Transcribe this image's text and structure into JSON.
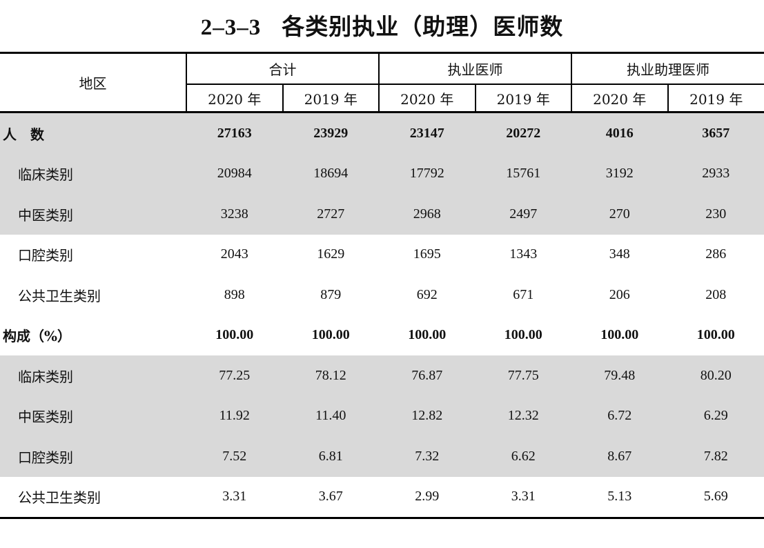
{
  "title": {
    "number": "2–3–3",
    "text": "各类别执业（助理）医师数"
  },
  "header": {
    "region": "地区",
    "groups": [
      "合计",
      "执业医师",
      "执业助理医师"
    ],
    "years": [
      "2020 年",
      "2019 年",
      "2020 年",
      "2019 年",
      "2020 年",
      "2019 年"
    ]
  },
  "rows": [
    {
      "label": "人　数",
      "type": "main",
      "values": [
        "27163",
        "23929",
        "23147",
        "20272",
        "4016",
        "3657"
      ]
    },
    {
      "label": "临床类别",
      "type": "sub",
      "values": [
        "20984",
        "18694",
        "17792",
        "15761",
        "3192",
        "2933"
      ]
    },
    {
      "label": "中医类别",
      "type": "sub",
      "values": [
        "3238",
        "2727",
        "2968",
        "2497",
        "270",
        "230"
      ]
    },
    {
      "label": "口腔类别",
      "type": "sub",
      "values": [
        "2043",
        "1629",
        "1695",
        "1343",
        "348",
        "286"
      ]
    },
    {
      "label": "公共卫生类别",
      "type": "sub",
      "values": [
        "898",
        "879",
        "692",
        "671",
        "206",
        "208"
      ]
    },
    {
      "label": "构成（%）",
      "type": "main",
      "values": [
        "100.00",
        "100.00",
        "100.00",
        "100.00",
        "100.00",
        "100.00"
      ]
    },
    {
      "label": "临床类别",
      "type": "sub",
      "values": [
        "77.25",
        "78.12",
        "76.87",
        "77.75",
        "79.48",
        "80.20"
      ]
    },
    {
      "label": "中医类别",
      "type": "sub",
      "values": [
        "11.92",
        "11.40",
        "12.82",
        "12.32",
        "6.72",
        "6.29"
      ]
    },
    {
      "label": "口腔类别",
      "type": "sub",
      "values": [
        "7.52",
        "6.81",
        "7.32",
        "6.62",
        "8.67",
        "7.82"
      ]
    },
    {
      "label": "公共卫生类别",
      "type": "sub",
      "values": [
        "3.31",
        "3.67",
        "2.99",
        "3.31",
        "5.13",
        "5.69"
      ]
    }
  ]
}
